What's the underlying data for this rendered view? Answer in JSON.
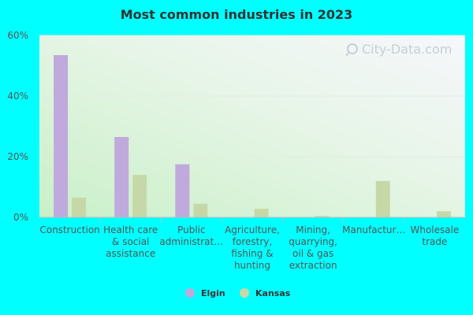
{
  "chart_data": {
    "type": "bar",
    "title": "Most common industries in 2023",
    "categories": [
      [
        "Construction"
      ],
      [
        "Health care",
        "& social",
        "assistance"
      ],
      [
        "Public",
        "administrat…"
      ],
      [
        "Agriculture,",
        "forestry,",
        "fishing &",
        "hunting"
      ],
      [
        "Mining,",
        "quarrying,",
        "oil & gas",
        "extraction"
      ],
      [
        "Manufactur…"
      ],
      [
        "Wholesale",
        "trade"
      ]
    ],
    "series": [
      {
        "name": "Elgin",
        "color": "#c0a9dc",
        "values": [
          53.5,
          26.5,
          17.5,
          0,
          0,
          0,
          0
        ]
      },
      {
        "name": "Kansas",
        "color": "#c7d8a8",
        "values": [
          6.5,
          14,
          4.5,
          2.8,
          0.5,
          12,
          2
        ]
      }
    ],
    "ylim": [
      0,
      60
    ],
    "yticks": [
      0,
      20,
      40,
      60
    ],
    "ytick_labels": [
      "0%",
      "20%",
      "40%",
      "60%"
    ],
    "xlabel": "",
    "ylabel": "",
    "legend_position": "bottom",
    "watermark": "City-Data.com"
  }
}
